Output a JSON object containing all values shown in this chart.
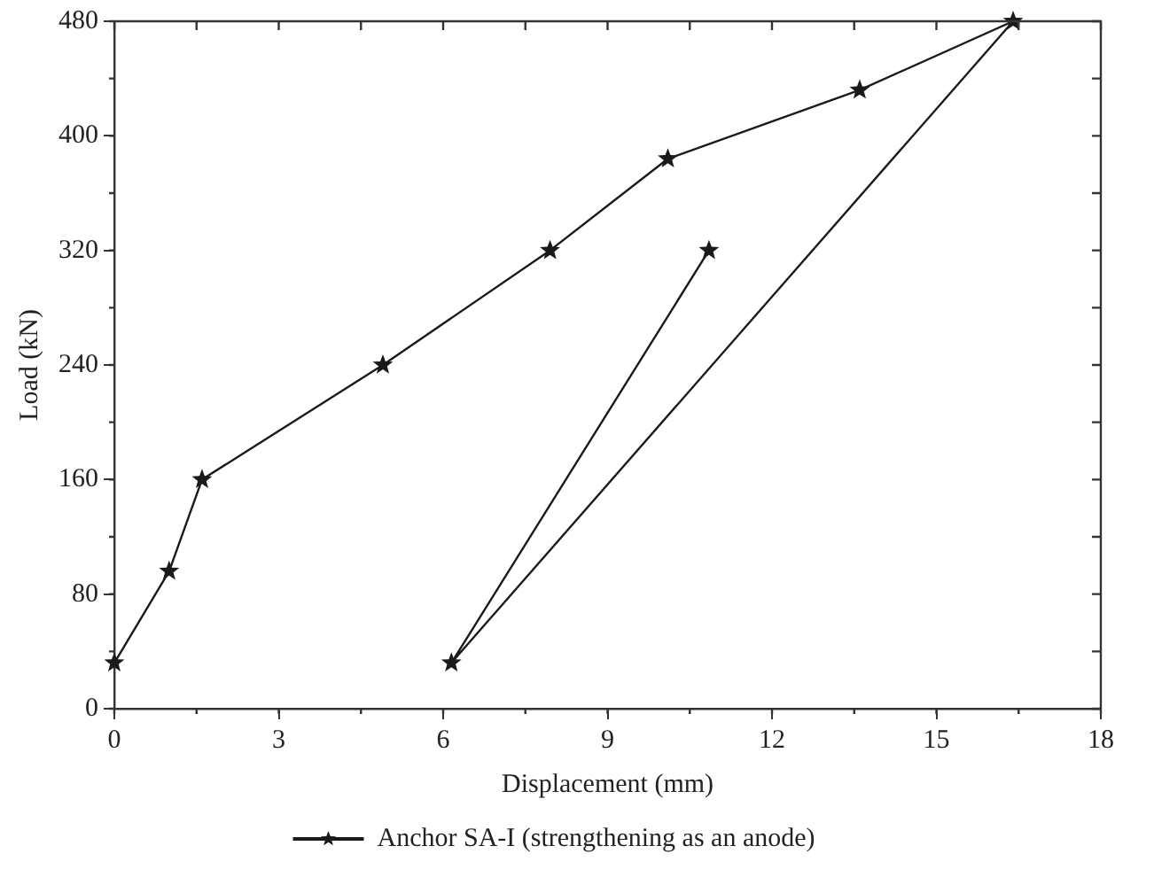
{
  "chart_data": {
    "type": "line",
    "xlabel": "Displacement (mm)",
    "ylabel": "Load (kN)",
    "xlim": [
      0,
      18
    ],
    "xticks": [
      0,
      3,
      6,
      9,
      12,
      15,
      18
    ],
    "ylim": [
      0,
      480
    ],
    "yticks": [
      0,
      80,
      160,
      240,
      320,
      400,
      480
    ],
    "grid": false,
    "legend": "bottom",
    "marker": "star",
    "line_style": "solid",
    "series": [
      {
        "name": "Anchor SA-I (strengthening as an anode)",
        "color": "#1a1a1a",
        "x": [
          0,
          1,
          1.6,
          4.9,
          7.95,
          10.1,
          13.6,
          16.4,
          6.15,
          10.85
        ],
        "values": [
          32,
          96,
          160,
          240,
          320,
          384,
          432,
          480,
          32,
          320
        ]
      }
    ]
  }
}
